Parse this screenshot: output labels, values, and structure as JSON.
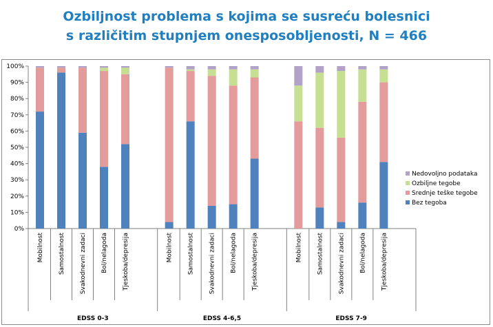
{
  "chart_data": {
    "type": "bar",
    "stacked": "percent",
    "title_line1": "Ozbiljnost problema s kojima se susreću bolesnici",
    "title_line2": "s različitim stupnjem onesposobljenosti, N = 466",
    "y_ticks": [
      "0%",
      "10%",
      "20%",
      "30%",
      "40%",
      "50%",
      "60%",
      "70%",
      "80%",
      "90%",
      "100%"
    ],
    "ylim": [
      0,
      100
    ],
    "grid": false,
    "legend_position": "right",
    "groups": [
      {
        "name": "EDSS 0-3",
        "categories": [
          "Mobilnost",
          "Samostalnost",
          "Svakodnevni zadaci",
          "Bol/nelagoda",
          "Tjeskoba/depresija"
        ]
      },
      {
        "name": "EDSS 4-6,5",
        "categories": [
          "Mobilnost",
          "Samostalnost",
          "Svakodnevni zadaci",
          "Bol/nelagoda",
          "Tjeskoba/depresija"
        ]
      },
      {
        "name": "EDSS 7-9",
        "categories": [
          "Mobilnost",
          "Samostalnost",
          "Svakodnevni zadaci",
          "Bol/nelagoda",
          "Tjeskoba/depresija"
        ]
      }
    ],
    "series": [
      {
        "name": "Bez tegoba",
        "color": "#4f81bd",
        "values": [
          72,
          96,
          59,
          38,
          52,
          4,
          66,
          14,
          15,
          43,
          0,
          13,
          4,
          16,
          41
        ]
      },
      {
        "name": "Srednje teške tegobe",
        "color": "#e39b9b",
        "values": [
          27,
          3,
          40,
          59,
          43,
          95,
          31,
          80,
          73,
          50,
          66,
          49,
          52,
          62,
          49
        ]
      },
      {
        "name": "Ozbiljne tegobe",
        "color": "#c6df93",
        "values": [
          0,
          0,
          0,
          2,
          4,
          0,
          1,
          4,
          10,
          5,
          22,
          34,
          41,
          20,
          8
        ]
      },
      {
        "name": "Nedovoljno podataka",
        "color": "#b3a2c7",
        "values": [
          1,
          1,
          1,
          1,
          1,
          1,
          2,
          2,
          2,
          2,
          12,
          4,
          3,
          2,
          2
        ]
      }
    ]
  }
}
